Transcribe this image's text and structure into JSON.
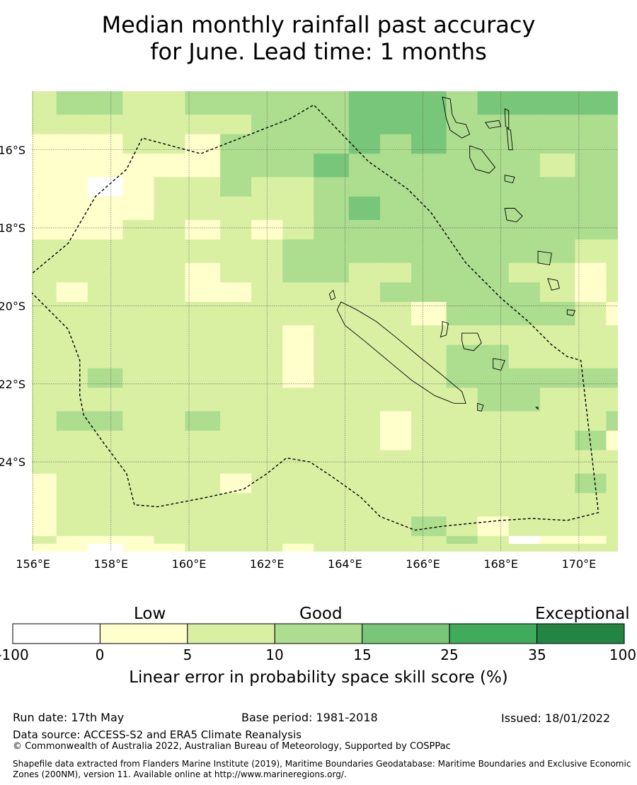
{
  "title_line1": "Median monthly rainfall past accuracy",
  "title_line2": "for June. Lead time: 1 months",
  "map": {
    "lon_labels": [
      "156°E",
      "158°E",
      "160°E",
      "162°E",
      "164°E",
      "166°E",
      "168°E",
      "170°E"
    ],
    "lon_values": [
      156,
      158,
      160,
      162,
      164,
      166,
      168,
      170
    ],
    "lat_labels": [
      "16°S",
      "18°S",
      "20°S",
      "22°S",
      "24°S"
    ],
    "lat_values": [
      -16,
      -18,
      -20,
      -22,
      -24
    ],
    "lon_range": [
      155.97,
      171.0
    ],
    "lat_range": [
      -26.3,
      -14.5
    ],
    "grid_lines": true,
    "eez_boundary_lonlat": [
      [
        155.7,
        -19.4
      ],
      [
        156.9,
        -18.4
      ],
      [
        157.6,
        -17.2
      ],
      [
        158.4,
        -16.5
      ],
      [
        158.8,
        -15.7
      ],
      [
        160.3,
        -16.1
      ],
      [
        162.6,
        -15.2
      ],
      [
        163.2,
        -14.85
      ],
      [
        164.6,
        -16.3
      ],
      [
        165.6,
        -17.0
      ],
      [
        166.2,
        -17.6
      ],
      [
        167.1,
        -18.9
      ],
      [
        168.0,
        -19.8
      ],
      [
        168.7,
        -20.4
      ],
      [
        169.3,
        -21.0
      ],
      [
        169.7,
        -21.3
      ],
      [
        170.05,
        -21.4
      ],
      [
        170.5,
        -25.3
      ],
      [
        169.7,
        -25.5
      ],
      [
        168.8,
        -25.45
      ],
      [
        168.0,
        -25.5
      ],
      [
        166.5,
        -25.65
      ],
      [
        165.8,
        -25.75
      ],
      [
        164.9,
        -25.4
      ],
      [
        164.4,
        -24.9
      ],
      [
        163.7,
        -24.4
      ],
      [
        163.1,
        -24.0
      ],
      [
        162.5,
        -23.9
      ],
      [
        162.0,
        -24.3
      ],
      [
        161.4,
        -24.7
      ],
      [
        160.5,
        -24.9
      ],
      [
        159.2,
        -25.15
      ],
      [
        158.6,
        -25.1
      ],
      [
        158.4,
        -24.3
      ],
      [
        157.8,
        -23.5
      ],
      [
        157.3,
        -22.8
      ],
      [
        157.2,
        -22.3
      ],
      [
        157.2,
        -21.4
      ],
      [
        156.9,
        -20.6
      ],
      [
        155.7,
        -19.4
      ]
    ],
    "islands": [
      {
        "name": "Grande Terre",
        "lonlat": [
          [
            163.9,
            -19.9
          ],
          [
            164.3,
            -20.1
          ],
          [
            164.8,
            -20.4
          ],
          [
            165.3,
            -20.8
          ],
          [
            165.9,
            -21.3
          ],
          [
            166.4,
            -21.7
          ],
          [
            167.0,
            -22.2
          ],
          [
            167.1,
            -22.5
          ],
          [
            166.8,
            -22.5
          ],
          [
            166.3,
            -22.3
          ],
          [
            165.7,
            -21.9
          ],
          [
            165.1,
            -21.4
          ],
          [
            164.5,
            -20.9
          ],
          [
            164.0,
            -20.5
          ],
          [
            163.8,
            -20.1
          ]
        ]
      },
      {
        "name": "Belep",
        "lonlat": [
          [
            163.6,
            -19.7
          ],
          [
            163.7,
            -19.6
          ],
          [
            163.75,
            -19.8
          ],
          [
            163.65,
            -19.85
          ]
        ]
      },
      {
        "name": "Ouvea",
        "lonlat": [
          [
            166.5,
            -20.4
          ],
          [
            166.65,
            -20.45
          ],
          [
            166.6,
            -20.75
          ],
          [
            166.45,
            -20.8
          ],
          [
            166.5,
            -20.6
          ]
        ]
      },
      {
        "name": "Lifou",
        "lonlat": [
          [
            167.0,
            -20.7
          ],
          [
            167.4,
            -20.7
          ],
          [
            167.5,
            -20.95
          ],
          [
            167.3,
            -21.15
          ],
          [
            167.05,
            -21.1
          ],
          [
            167.0,
            -20.9
          ]
        ]
      },
      {
        "name": "Mare",
        "lonlat": [
          [
            167.8,
            -21.35
          ],
          [
            168.1,
            -21.4
          ],
          [
            168.0,
            -21.65
          ],
          [
            167.8,
            -21.6
          ]
        ]
      },
      {
        "name": "Isle of Pines",
        "lonlat": [
          [
            167.4,
            -22.5
          ],
          [
            167.55,
            -22.55
          ],
          [
            167.5,
            -22.7
          ],
          [
            167.4,
            -22.68
          ]
        ]
      },
      {
        "name": "Walpole",
        "lonlat": [
          [
            168.9,
            -22.6
          ],
          [
            168.95,
            -22.6
          ],
          [
            168.95,
            -22.65
          ]
        ]
      },
      {
        "name": "Espiritu Santo",
        "lonlat": [
          [
            166.5,
            -14.65
          ],
          [
            166.7,
            -14.7
          ],
          [
            166.75,
            -15.1
          ],
          [
            166.85,
            -15.3
          ],
          [
            167.1,
            -15.35
          ],
          [
            167.2,
            -15.6
          ],
          [
            167.0,
            -15.7
          ],
          [
            166.7,
            -15.5
          ],
          [
            166.6,
            -15.2
          ]
        ]
      },
      {
        "name": "Maewo",
        "lonlat": [
          [
            168.1,
            -14.95
          ],
          [
            168.2,
            -15.0
          ],
          [
            168.2,
            -15.45
          ],
          [
            168.12,
            -15.4
          ]
        ]
      },
      {
        "name": "Ambae",
        "lonlat": [
          [
            167.6,
            -15.3
          ],
          [
            167.95,
            -15.25
          ],
          [
            168.0,
            -15.4
          ],
          [
            167.7,
            -15.45
          ]
        ]
      },
      {
        "name": "Pentecost",
        "lonlat": [
          [
            168.15,
            -15.45
          ],
          [
            168.25,
            -15.5
          ],
          [
            168.3,
            -16.0
          ],
          [
            168.2,
            -16.0
          ]
        ]
      },
      {
        "name": "Malekula",
        "lonlat": [
          [
            167.2,
            -15.9
          ],
          [
            167.5,
            -16.0
          ],
          [
            167.85,
            -16.45
          ],
          [
            167.7,
            -16.6
          ],
          [
            167.35,
            -16.5
          ],
          [
            167.2,
            -16.2
          ]
        ]
      },
      {
        "name": "Epi",
        "lonlat": [
          [
            168.1,
            -16.65
          ],
          [
            168.35,
            -16.7
          ],
          [
            168.3,
            -16.85
          ],
          [
            168.1,
            -16.8
          ]
        ]
      },
      {
        "name": "Efate",
        "lonlat": [
          [
            168.1,
            -17.5
          ],
          [
            168.35,
            -17.5
          ],
          [
            168.55,
            -17.7
          ],
          [
            168.4,
            -17.85
          ],
          [
            168.15,
            -17.8
          ]
        ]
      },
      {
        "name": "Erromango",
        "lonlat": [
          [
            168.95,
            -18.6
          ],
          [
            169.3,
            -18.65
          ],
          [
            169.25,
            -18.95
          ],
          [
            168.95,
            -18.9
          ]
        ]
      },
      {
        "name": "Tanna",
        "lonlat": [
          [
            169.2,
            -19.3
          ],
          [
            169.45,
            -19.35
          ],
          [
            169.5,
            -19.55
          ],
          [
            169.3,
            -19.6
          ]
        ]
      },
      {
        "name": "Aneityum",
        "lonlat": [
          [
            169.7,
            -20.1
          ],
          [
            169.9,
            -20.12
          ],
          [
            169.85,
            -20.25
          ],
          [
            169.7,
            -20.22
          ]
        ]
      }
    ],
    "grid_lat_rows": [
      -14.5,
      -15.1,
      -15.6,
      -16.1,
      -16.7,
      -17.2,
      -17.8,
      -18.3,
      -18.9,
      -19.4,
      -19.9,
      -20.5,
      -21.0,
      -21.6,
      -22.1,
      -22.7,
      -23.2,
      -23.7,
      -24.3,
      -24.8,
      -25.4,
      -25.9,
      -26.1,
      -26.3
    ],
    "grid_lon_cols": [
      155.97,
      156.6,
      157.4,
      158.3,
      159.1,
      159.9,
      160.8,
      161.6,
      162.4,
      163.2,
      164.1,
      164.9,
      165.7,
      166.6,
      167.4,
      168.2,
      169.0,
      169.9,
      170.7,
      171.0
    ],
    "skill_grid": [
      [
        2,
        3,
        3,
        2,
        2,
        3,
        3,
        3,
        3,
        3,
        4,
        4,
        4,
        3,
        4,
        4,
        4,
        4,
        4
      ],
      [
        2,
        2,
        2,
        2,
        2,
        2,
        2,
        3,
        3,
        3,
        4,
        4,
        4,
        3,
        3,
        3,
        3,
        3,
        3
      ],
      [
        1,
        1,
        1,
        2,
        2,
        1,
        3,
        3,
        3,
        3,
        4,
        3,
        4,
        3,
        3,
        3,
        3,
        3,
        3
      ],
      [
        1,
        1,
        1,
        1,
        1,
        1,
        3,
        3,
        3,
        4,
        3,
        3,
        3,
        3,
        3,
        3,
        2,
        3,
        3
      ],
      [
        1,
        1,
        0,
        1,
        2,
        2,
        3,
        2,
        2,
        3,
        3,
        3,
        3,
        3,
        3,
        3,
        3,
        3,
        3
      ],
      [
        1,
        1,
        1,
        1,
        2,
        2,
        2,
        2,
        2,
        3,
        4,
        3,
        3,
        3,
        3,
        3,
        3,
        3,
        3
      ],
      [
        1,
        1,
        1,
        2,
        2,
        1,
        2,
        1,
        2,
        3,
        3,
        3,
        3,
        3,
        3,
        3,
        3,
        3,
        3
      ],
      [
        2,
        2,
        2,
        2,
        2,
        2,
        2,
        2,
        3,
        3,
        3,
        3,
        3,
        3,
        3,
        3,
        3,
        2,
        2
      ],
      [
        2,
        2,
        2,
        2,
        2,
        1,
        2,
        2,
        3,
        3,
        2,
        2,
        3,
        3,
        3,
        2,
        2,
        1,
        2
      ],
      [
        2,
        1,
        2,
        2,
        2,
        1,
        1,
        2,
        2,
        2,
        2,
        3,
        3,
        3,
        3,
        3,
        2,
        1,
        2
      ],
      [
        2,
        2,
        2,
        2,
        2,
        2,
        2,
        2,
        2,
        2,
        2,
        2,
        1,
        3,
        3,
        3,
        3,
        2,
        1
      ],
      [
        2,
        2,
        2,
        2,
        2,
        2,
        2,
        2,
        1,
        2,
        2,
        2,
        2,
        2,
        2,
        2,
        2,
        2,
        2
      ],
      [
        2,
        2,
        2,
        2,
        2,
        2,
        2,
        2,
        1,
        2,
        2,
        2,
        2,
        3,
        3,
        2,
        2,
        2,
        2
      ],
      [
        2,
        2,
        3,
        2,
        2,
        2,
        2,
        2,
        1,
        2,
        2,
        2,
        2,
        3,
        3,
        3,
        3,
        3,
        3
      ],
      [
        2,
        2,
        2,
        2,
        2,
        2,
        2,
        2,
        2,
        2,
        2,
        2,
        2,
        2,
        3,
        3,
        2,
        2,
        2
      ],
      [
        2,
        3,
        3,
        2,
        2,
        3,
        2,
        2,
        2,
        2,
        2,
        1,
        2,
        2,
        2,
        2,
        2,
        2,
        3
      ],
      [
        2,
        2,
        2,
        2,
        2,
        2,
        2,
        2,
        2,
        2,
        2,
        1,
        2,
        2,
        2,
        2,
        2,
        3,
        1
      ],
      [
        2,
        2,
        2,
        2,
        2,
        2,
        2,
        2,
        2,
        2,
        2,
        2,
        2,
        2,
        2,
        2,
        2,
        2,
        2
      ],
      [
        1,
        2,
        2,
        2,
        2,
        2,
        1,
        2,
        2,
        2,
        2,
        2,
        2,
        2,
        2,
        2,
        2,
        3,
        2
      ],
      [
        1,
        2,
        2,
        2,
        2,
        2,
        2,
        2,
        2,
        2,
        2,
        2,
        2,
        2,
        2,
        2,
        2,
        2,
        2
      ],
      [
        1,
        2,
        2,
        2,
        2,
        2,
        2,
        2,
        2,
        2,
        2,
        2,
        3,
        2,
        1,
        2,
        2,
        2,
        2
      ],
      [
        2,
        1,
        1,
        1,
        2,
        2,
        2,
        2,
        2,
        2,
        2,
        2,
        2,
        3,
        2,
        0,
        1,
        1,
        2
      ],
      [
        1,
        1,
        0,
        1,
        1,
        2,
        2,
        2,
        1,
        2,
        2,
        2,
        2,
        2,
        2,
        2,
        2,
        2,
        2
      ]
    ],
    "colors": [
      "#ffffff",
      "#ffffcc",
      "#d9f0a3",
      "#addd8e",
      "#78c679",
      "#41ab5d",
      "#238443"
    ]
  },
  "colorbar": {
    "category_labels": [
      "Low",
      "Good",
      "Exceptional"
    ],
    "tick_labels": [
      "-100",
      "0",
      "5",
      "10",
      "15",
      "25",
      "35",
      "100"
    ],
    "title": "Linear error in probability space skill score (%)",
    "colors": [
      "#ffffff",
      "#ffffcc",
      "#d9f0a3",
      "#addd8e",
      "#78c679",
      "#41ab5d",
      "#238443"
    ]
  },
  "footer": {
    "run_date": "Run date: 17th May",
    "base_period": "Base period: 1981-2018",
    "issued": "Issued: 18/01/2022",
    "data_source": "Data source: ACCESS-S2 and ERA5 Climate Reanalysis",
    "copyright": "© Commonwealth of Australia 2022, Australian Bureau of Meteorology, Supported by COSPPac",
    "shapefile": "Shapefile data extracted from Flanders Marine Institute (2019), Maritime Boundaries Geodatabase: Maritime Boundaries and Exclusive Economic Zones (200NM), version 11. Available online at http://www.marineregions.org/."
  }
}
